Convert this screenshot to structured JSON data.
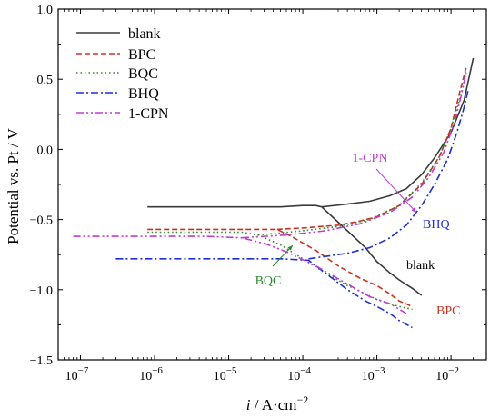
{
  "chart_data": {
    "type": "line",
    "xlabel_i": "i",
    "xlabel_rest": " / A·cm",
    "xlabel_sup": "−2",
    "ylabel": "Potential vs. Pt / V",
    "xscale": "log",
    "xlim": [
      5e-08,
      0.03
    ],
    "ylim": [
      -1.5,
      1.0
    ],
    "x_tick_labels": [
      {
        "base": "10",
        "exp": "−7",
        "value": 1e-07
      },
      {
        "base": "10",
        "exp": "−6",
        "value": 1e-06
      },
      {
        "base": "10",
        "exp": "−5",
        "value": 1e-05
      },
      {
        "base": "10",
        "exp": "−4",
        "value": 0.0001
      },
      {
        "base": "10",
        "exp": "−3",
        "value": 0.001
      },
      {
        "base": "10",
        "exp": "−2",
        "value": 0.01
      }
    ],
    "y_ticks": [
      -1.5,
      -1.0,
      -0.5,
      0.0,
      0.5,
      1.0
    ],
    "y_tick_labels": [
      "−1.5",
      "−1.0",
      "−0.5",
      "0.0",
      "0.5",
      "1.0"
    ],
    "legend_position": "top-left",
    "series": [
      {
        "name": "blank",
        "color": "#3a3a3a",
        "dash": "solid",
        "points": [
          [
            8e-07,
            -0.41
          ],
          [
            3e-06,
            -0.41
          ],
          [
            1e-05,
            -0.41
          ],
          [
            5e-05,
            -0.41
          ],
          [
            0.0001,
            -0.4
          ],
          [
            0.00015,
            -0.4
          ],
          [
            0.00018,
            -0.41
          ],
          [
            0.00025,
            -0.48
          ],
          [
            0.0004,
            -0.58
          ],
          [
            0.0007,
            -0.7
          ],
          [
            0.001,
            -0.8
          ],
          [
            0.0015,
            -0.88
          ],
          [
            0.002,
            -0.93
          ],
          [
            0.003,
            -0.99
          ],
          [
            0.004,
            -1.04
          ]
        ]
      },
      {
        "name": "blank",
        "color": "#3a3a3a",
        "dash": "solid",
        "points": [
          [
            0.00018,
            -0.41
          ],
          [
            0.0004,
            -0.39
          ],
          [
            0.0008,
            -0.37
          ],
          [
            0.0015,
            -0.33
          ],
          [
            0.0025,
            -0.28
          ],
          [
            0.004,
            -0.18
          ],
          [
            0.006,
            -0.06
          ],
          [
            0.01,
            0.12
          ],
          [
            0.015,
            0.35
          ],
          [
            0.02,
            0.65
          ]
        ]
      },
      {
        "name": "BPC",
        "color": "#c8341e",
        "dash": "6,3",
        "points": [
          [
            8e-07,
            -0.57
          ],
          [
            5e-06,
            -0.57
          ],
          [
            1.5e-05,
            -0.57
          ],
          [
            3e-05,
            -0.57
          ],
          [
            4.5e-05,
            -0.57
          ],
          [
            7e-05,
            -0.62
          ],
          [
            0.00015,
            -0.72
          ],
          [
            0.0003,
            -0.83
          ],
          [
            0.0006,
            -0.92
          ],
          [
            0.001,
            -0.97
          ],
          [
            0.0015,
            -1.03
          ],
          [
            0.002,
            -1.08
          ],
          [
            0.003,
            -1.12
          ]
        ]
      },
      {
        "name": "BPC",
        "color": "#c8341e",
        "dash": "6,3",
        "points": [
          [
            4.5e-05,
            -0.57
          ],
          [
            0.0001,
            -0.56
          ],
          [
            0.0003,
            -0.54
          ],
          [
            0.0006,
            -0.51
          ],
          [
            0.001,
            -0.48
          ],
          [
            0.002,
            -0.4
          ],
          [
            0.004,
            -0.25
          ],
          [
            0.007,
            -0.05
          ],
          [
            0.01,
            0.15
          ],
          [
            0.013,
            0.4
          ],
          [
            0.016,
            0.58
          ]
        ]
      },
      {
        "name": "BQC",
        "color": "#2a8a2a",
        "dash": "1.5,3",
        "points": [
          [
            8e-07,
            -0.59
          ],
          [
            5e-06,
            -0.59
          ],
          [
            1.5e-05,
            -0.59
          ],
          [
            2.5e-05,
            -0.61
          ],
          [
            5e-05,
            -0.68
          ],
          [
            0.0001,
            -0.78
          ],
          [
            0.0002,
            -0.88
          ],
          [
            0.0004,
            -0.97
          ],
          [
            0.0007,
            -1.03
          ],
          [
            0.001,
            -1.07
          ],
          [
            0.0015,
            -1.1
          ],
          [
            0.002,
            -1.12
          ],
          [
            0.003,
            -1.14
          ]
        ]
      },
      {
        "name": "BQC",
        "color": "#2a8a2a",
        "dash": "1.5,3",
        "points": [
          [
            2.5e-05,
            -0.61
          ],
          [
            0.0001,
            -0.58
          ],
          [
            0.0003,
            -0.55
          ],
          [
            0.0008,
            -0.5
          ],
          [
            0.002,
            -0.4
          ],
          [
            0.004,
            -0.24
          ],
          [
            0.007,
            -0.05
          ],
          [
            0.01,
            0.15
          ],
          [
            0.013,
            0.35
          ],
          [
            0.016,
            0.54
          ]
        ]
      },
      {
        "name": "BHQ",
        "color": "#1f2fd0",
        "dash": "8,3,2,3",
        "points": [
          [
            3e-07,
            -0.78
          ],
          [
            2e-06,
            -0.78
          ],
          [
            1e-05,
            -0.78
          ],
          [
            5e-05,
            -0.78
          ],
          [
            0.00012,
            -0.79
          ],
          [
            0.0002,
            -0.88
          ],
          [
            0.0004,
            -1.0
          ],
          [
            0.0007,
            -1.08
          ],
          [
            0.001,
            -1.12
          ],
          [
            0.0015,
            -1.17
          ],
          [
            0.002,
            -1.22
          ],
          [
            0.003,
            -1.27
          ]
        ]
      },
      {
        "name": "BHQ",
        "color": "#1f2fd0",
        "dash": "8,3,2,3",
        "points": [
          [
            0.00012,
            -0.78
          ],
          [
            0.0004,
            -0.74
          ],
          [
            0.0008,
            -0.7
          ],
          [
            0.0015,
            -0.63
          ],
          [
            0.0025,
            -0.54
          ],
          [
            0.004,
            -0.4
          ],
          [
            0.006,
            -0.25
          ],
          [
            0.009,
            -0.07
          ],
          [
            0.012,
            0.12
          ],
          [
            0.015,
            0.3
          ],
          [
            0.017,
            0.42
          ]
        ]
      },
      {
        "name": "1-CPN",
        "color": "#c23ad4",
        "dash": "8,3,2,3,2,3",
        "points": [
          [
            8e-08,
            -0.62
          ],
          [
            1e-06,
            -0.62
          ],
          [
            5e-06,
            -0.62
          ],
          [
            1.5e-05,
            -0.63
          ],
          [
            3e-05,
            -0.67
          ],
          [
            6e-05,
            -0.73
          ],
          [
            0.00015,
            -0.83
          ],
          [
            0.0004,
            -0.96
          ],
          [
            0.0008,
            -1.05
          ],
          [
            0.0015,
            -1.1
          ],
          [
            0.0025,
            -1.17
          ]
        ]
      },
      {
        "name": "1-CPN",
        "color": "#c23ad4",
        "dash": "8,3,2,3,2,3",
        "points": [
          [
            1.5e-05,
            -0.63
          ],
          [
            6e-05,
            -0.61
          ],
          [
            0.0002,
            -0.58
          ],
          [
            0.0006,
            -0.53
          ],
          [
            0.0015,
            -0.45
          ],
          [
            0.003,
            -0.34
          ],
          [
            0.005,
            -0.2
          ],
          [
            0.008,
            -0.02
          ],
          [
            0.011,
            0.18
          ],
          [
            0.014,
            0.4
          ],
          [
            0.016,
            0.55
          ]
        ]
      }
    ],
    "annotations": [
      {
        "text": "1-CPN",
        "color": "#c23ad4"
      },
      {
        "text": "BHQ",
        "color": "#1f2fd0"
      },
      {
        "text": "blank",
        "color": "#000000"
      },
      {
        "text": "BQC",
        "color": "#2a8a2a"
      },
      {
        "text": "BPC",
        "color": "#c8341e"
      }
    ],
    "legend": [
      {
        "label": "blank",
        "color": "#3a3a3a",
        "dash": "solid"
      },
      {
        "label": "BPC",
        "color": "#c8341e",
        "dash": "6,3"
      },
      {
        "label": "BQC",
        "color": "#2a8a2a",
        "dash": "1.5,3"
      },
      {
        "label": "BHQ",
        "color": "#1f2fd0",
        "dash": "8,3,2,3"
      },
      {
        "label": "1-CPN",
        "color": "#c23ad4",
        "dash": "8,3,2,3,2,3"
      }
    ]
  }
}
